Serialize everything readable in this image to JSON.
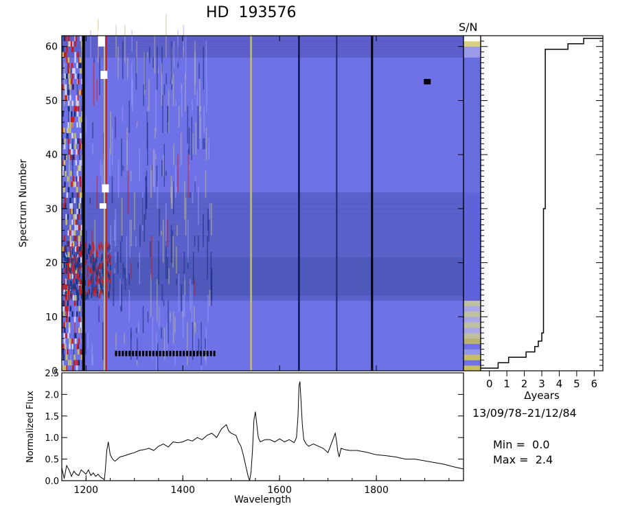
{
  "title": "HD  193576",
  "sn_label": "S/N",
  "date_range": "13/09/78–21/12/84",
  "min_label": "Min =  0.0",
  "max_label": "Max =  2.4",
  "colors": {
    "base": "#6f72e6",
    "dark": "#2a3b8a",
    "black": "#000000",
    "yellow": "#c8c060",
    "red": "#c81e1e",
    "white": "#ffffff"
  },
  "chart_data": [
    {
      "type": "heatmap",
      "title": "HD  193576",
      "ylabel": "Spectrum Number",
      "xlim": [
        1150,
        1980
      ],
      "ylim": [
        0,
        62
      ],
      "yticks": [
        0,
        10,
        20,
        30,
        40,
        50,
        60
      ],
      "colorbar_label": "S/N",
      "value_range": [
        0.0,
        2.4
      ],
      "grid": false
    },
    {
      "type": "line",
      "xlabel": "Δyears",
      "ylabel": "",
      "xlim": [
        -0.5,
        6.5
      ],
      "ylim": [
        0,
        62
      ],
      "xticks": [
        0,
        1,
        2,
        3,
        4,
        5,
        6
      ],
      "subtitle": "13/09/78–21/12/84",
      "series": [
        {
          "x": [
            -0.5,
            0.5,
            0.5,
            1.1,
            1.1,
            2.1,
            2.1,
            2.6,
            2.6,
            2.8,
            2.8,
            3.0,
            3.0,
            3.1,
            3.1,
            3.2,
            3.2,
            4.5,
            4.5,
            5.4,
            5.4,
            6.5
          ],
          "y": [
            0.5,
            0.5,
            1.5,
            1.5,
            2.5,
            2.5,
            3.5,
            3.5,
            4.5,
            4.5,
            5.5,
            5.5,
            7.0,
            7.0,
            30.0,
            30.0,
            59.5,
            59.5,
            60.5,
            60.5,
            61.5,
            61.5
          ]
        }
      ]
    },
    {
      "type": "line",
      "xlabel": "Wavelength",
      "ylabel": "Normalized Flux",
      "xlim": [
        1150,
        1980
      ],
      "ylim": [
        0,
        2.5
      ],
      "xticks": [
        1200,
        1400,
        1600,
        1800
      ],
      "yticks": [
        0.0,
        0.5,
        1.0,
        1.5,
        2.0,
        2.5
      ],
      "series": [
        {
          "x": [
            1150,
            1155,
            1160,
            1165,
            1170,
            1175,
            1180,
            1185,
            1190,
            1195,
            1200,
            1205,
            1210,
            1215,
            1220,
            1225,
            1230,
            1235,
            1238,
            1240,
            1243,
            1246,
            1250,
            1255,
            1260,
            1270,
            1280,
            1290,
            1300,
            1310,
            1320,
            1330,
            1340,
            1350,
            1360,
            1370,
            1380,
            1390,
            1400,
            1410,
            1420,
            1430,
            1440,
            1450,
            1460,
            1470,
            1480,
            1485,
            1490,
            1495,
            1500,
            1510,
            1515,
            1520,
            1525,
            1530,
            1535,
            1538,
            1541,
            1544,
            1547,
            1550,
            1553,
            1556,
            1560,
            1570,
            1580,
            1590,
            1600,
            1610,
            1620,
            1630,
            1635,
            1638,
            1640,
            1642,
            1644,
            1647,
            1650,
            1655,
            1660,
            1670,
            1680,
            1690,
            1700,
            1710,
            1715,
            1718,
            1720,
            1723,
            1727,
            1735,
            1745,
            1760,
            1780,
            1800,
            1820,
            1840,
            1860,
            1880,
            1900,
            1920,
            1940,
            1960,
            1980
          ],
          "y": [
            0.3,
            0.05,
            0.35,
            0.25,
            0.1,
            0.22,
            0.15,
            0.12,
            0.25,
            0.2,
            0.15,
            0.25,
            0.12,
            0.18,
            0.1,
            0.15,
            0.08,
            0.05,
            0.02,
            0.25,
            0.7,
            0.9,
            0.6,
            0.5,
            0.45,
            0.55,
            0.58,
            0.62,
            0.65,
            0.7,
            0.72,
            0.75,
            0.7,
            0.8,
            0.85,
            0.78,
            0.9,
            0.88,
            0.9,
            0.95,
            0.92,
            1.0,
            0.95,
            1.05,
            1.1,
            1.0,
            1.2,
            1.25,
            1.3,
            1.15,
            1.1,
            1.05,
            0.9,
            0.8,
            0.6,
            0.35,
            0.1,
            0.0,
            0.2,
            0.7,
            1.4,
            1.6,
            1.3,
            1.0,
            0.9,
            0.95,
            0.95,
            0.9,
            0.97,
            0.9,
            0.95,
            0.88,
            1.0,
            1.5,
            2.2,
            2.3,
            1.9,
            1.3,
            0.95,
            0.85,
            0.8,
            0.85,
            0.8,
            0.75,
            0.65,
            0.95,
            1.1,
            0.9,
            0.7,
            0.55,
            0.75,
            0.72,
            0.7,
            0.7,
            0.66,
            0.6,
            0.58,
            0.55,
            0.5,
            0.5,
            0.46,
            0.42,
            0.38,
            0.32,
            0.27
          ]
        }
      ]
    }
  ]
}
